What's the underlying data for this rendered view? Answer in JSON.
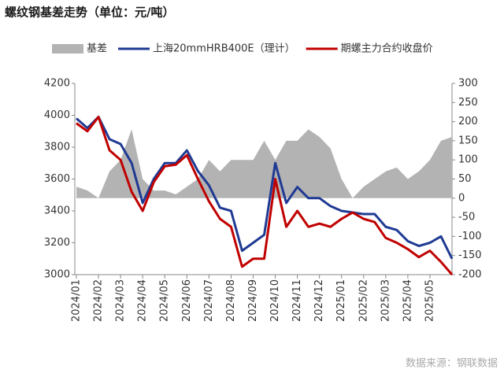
{
  "chart_data": {
    "type": "line",
    "title": "螺纹钢基差走势（单位：元/吨）",
    "source": "数据来源：钢联数据",
    "categories": [
      "2024/01",
      null,
      "2024/02",
      null,
      "2024/03",
      null,
      "2024/04",
      null,
      "2024/05",
      null,
      "2024/06",
      null,
      "2024/07",
      null,
      "2024/08",
      null,
      "2024/09",
      null,
      "2024/10",
      null,
      "2024/11",
      null,
      "2024/12",
      null,
      "2025/01",
      null,
      "2025/02",
      null,
      "2025/03",
      null,
      "2025/04",
      null,
      "2025/05",
      null,
      null
    ],
    "series": [
      {
        "name": "基差",
        "color": "#b3b3b3",
        "kind": "area",
        "axis": "y2",
        "values": [
          30,
          20,
          0,
          70,
          100,
          180,
          50,
          20,
          20,
          10,
          30,
          50,
          100,
          70,
          100,
          100,
          100,
          150,
          100,
          150,
          150,
          180,
          160,
          130,
          50,
          0,
          30,
          50,
          70,
          80,
          50,
          70,
          100,
          150,
          160
        ]
      },
      {
        "name": "上海20mmHRB400E（理计）",
        "color": "#1f3a93",
        "kind": "line",
        "values": [
          3980,
          3920,
          3990,
          3850,
          3820,
          3700,
          3450,
          3600,
          3700,
          3700,
          3780,
          3650,
          3560,
          3420,
          3400,
          3150,
          3200,
          3250,
          3700,
          3450,
          3550,
          3480,
          3480,
          3430,
          3400,
          3390,
          3380,
          3380,
          3300,
          3280,
          3210,
          3180,
          3200,
          3240,
          3100
        ]
      },
      {
        "name": "期螺主力合约收盘价",
        "color": "#c00000",
        "kind": "line",
        "values": [
          3950,
          3900,
          3990,
          3780,
          3720,
          3520,
          3400,
          3580,
          3680,
          3690,
          3750,
          3600,
          3460,
          3350,
          3300,
          3050,
          3100,
          3100,
          3600,
          3300,
          3400,
          3300,
          3320,
          3300,
          3350,
          3390,
          3350,
          3330,
          3230,
          3200,
          3160,
          3110,
          3150,
          3080,
          3000
        ]
      }
    ],
    "ylim": [
      3000,
      4200
    ],
    "yticks": [
      3000,
      3200,
      3400,
      3600,
      3800,
      4000,
      4200
    ],
    "y2lim": [
      -200,
      300
    ],
    "y2ticks": [
      -200,
      -150,
      -100,
      -50,
      0,
      50,
      100,
      150,
      200,
      250,
      300
    ]
  }
}
